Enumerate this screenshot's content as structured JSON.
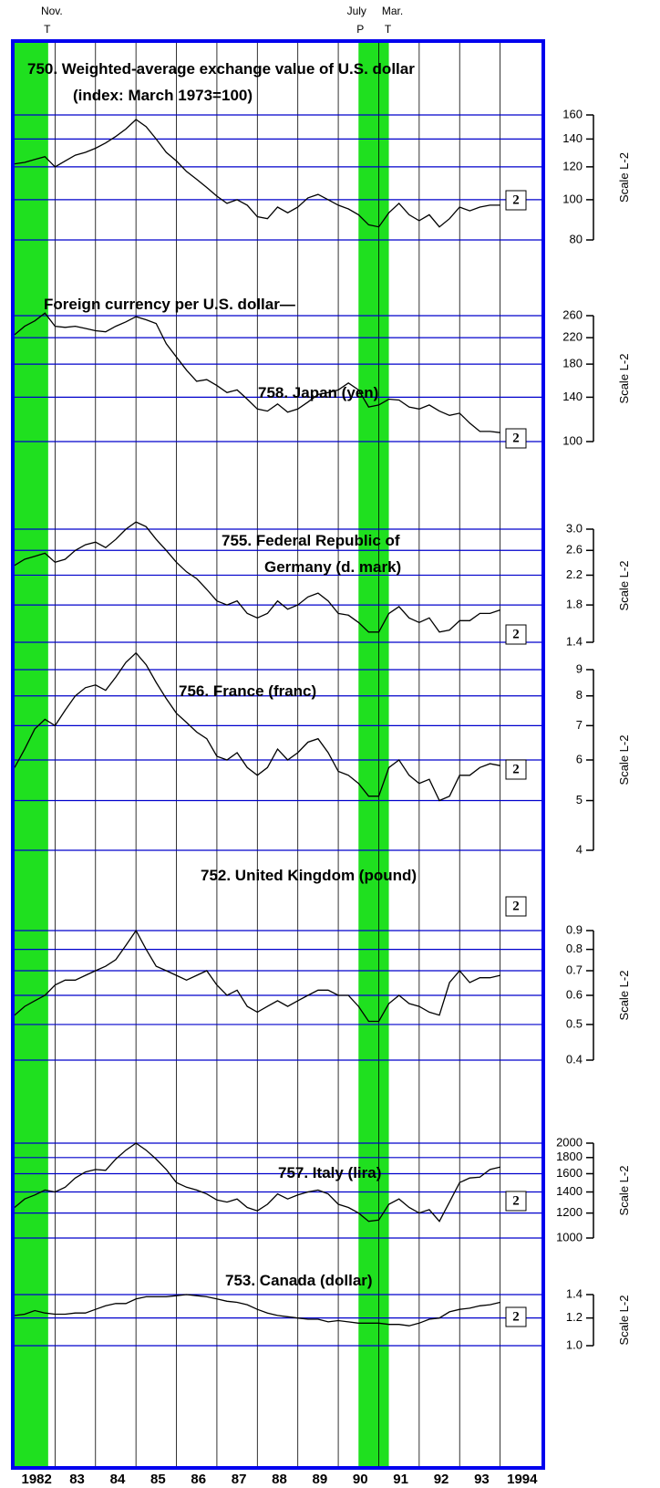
{
  "heading": "Foreign currency per U.S. dollar—",
  "band_color": "#1fe01f",
  "recessions": [
    {
      "end": 1982.83,
      "end_month": "Nov.",
      "end_mark": "T"
    },
    {
      "start": 1990.5,
      "start_month": "July",
      "start_mark": "P",
      "end": 1991.25,
      "end_month": "Mar.",
      "end_mark": "T"
    }
  ],
  "chart_data": [
    {
      "type": "line",
      "title_lines": [
        "750. Weighted-average exchange value of U.S. dollar",
        "(index: March 1973=100)"
      ],
      "note": "2",
      "axis_label": "Scale L-2",
      "log_scale": true,
      "color": "#000000",
      "ylim": [
        80,
        160
      ],
      "yticks": [
        80,
        100,
        120,
        140,
        160
      ],
      "x": [
        1982,
        1982.25,
        1982.5,
        1982.75,
        1983,
        1983.25,
        1983.5,
        1983.75,
        1984,
        1984.25,
        1984.5,
        1984.75,
        1985,
        1985.25,
        1985.5,
        1985.75,
        1986,
        1986.25,
        1986.5,
        1986.75,
        1987,
        1987.25,
        1987.5,
        1987.75,
        1988,
        1988.25,
        1988.5,
        1988.75,
        1989,
        1989.25,
        1989.5,
        1989.75,
        1990,
        1990.25,
        1990.5,
        1990.75,
        1991,
        1991.25,
        1991.5,
        1991.75,
        1992,
        1992.25,
        1992.5,
        1992.75,
        1993,
        1993.25,
        1993.5,
        1993.75,
        1994
      ],
      "values": [
        122,
        123,
        125,
        127,
        120,
        124,
        128,
        130,
        133,
        137,
        142,
        148,
        156,
        150,
        140,
        130,
        124,
        117,
        112,
        107,
        102,
        98,
        100,
        97,
        91,
        90,
        96,
        93,
        96,
        101,
        103,
        100,
        97,
        95,
        92,
        87,
        86,
        93,
        98,
        92,
        89,
        92,
        86,
        90,
        96,
        94,
        96,
        97,
        97
      ]
    },
    {
      "type": "line",
      "title_lines": [
        "758.  Japan (yen)"
      ],
      "note": "2",
      "axis_label": "Scale L-2",
      "log_scale": true,
      "color": "#000000",
      "ylim": [
        100,
        260
      ],
      "yticks": [
        100,
        140,
        180,
        220,
        260
      ],
      "x": [
        1982,
        1982.25,
        1982.5,
        1982.75,
        1983,
        1983.25,
        1983.5,
        1983.75,
        1984,
        1984.25,
        1984.5,
        1984.75,
        1985,
        1985.25,
        1985.5,
        1985.75,
        1986,
        1986.25,
        1986.5,
        1986.75,
        1987,
        1987.25,
        1987.5,
        1987.75,
        1988,
        1988.25,
        1988.5,
        1988.75,
        1989,
        1989.25,
        1989.5,
        1989.75,
        1990,
        1990.25,
        1990.5,
        1990.75,
        1991,
        1991.25,
        1991.5,
        1991.75,
        1992,
        1992.25,
        1992.5,
        1992.75,
        1993,
        1993.25,
        1993.5,
        1993.75,
        1994
      ],
      "values": [
        225,
        240,
        250,
        265,
        240,
        238,
        240,
        236,
        232,
        230,
        240,
        248,
        258,
        252,
        245,
        210,
        190,
        172,
        158,
        160,
        153,
        145,
        148,
        138,
        128,
        126,
        133,
        125,
        128,
        135,
        143,
        145,
        148,
        156,
        148,
        130,
        132,
        138,
        137,
        130,
        128,
        132,
        126,
        122,
        124,
        115,
        108,
        108,
        107
      ]
    },
    {
      "type": "line",
      "title_lines": [
        "755. Federal Republic of",
        "Germany (d. mark)"
      ],
      "note": "2",
      "axis_label": "Scale L-2",
      "log_scale": true,
      "color": "#000000",
      "ylim": [
        1.4,
        3
      ],
      "yticks": [
        1.4,
        1.8,
        2.2,
        2.6,
        {
          "value": 3,
          "label": "3.0"
        }
      ],
      "x": [
        1982,
        1982.25,
        1982.5,
        1982.75,
        1983,
        1983.25,
        1983.5,
        1983.75,
        1984,
        1984.25,
        1984.5,
        1984.75,
        1985,
        1985.25,
        1985.5,
        1985.75,
        1986,
        1986.25,
        1986.5,
        1986.75,
        1987,
        1987.25,
        1987.5,
        1987.75,
        1988,
        1988.25,
        1988.5,
        1988.75,
        1989,
        1989.25,
        1989.5,
        1989.75,
        1990,
        1990.25,
        1990.5,
        1990.75,
        1991,
        1991.25,
        1991.5,
        1991.75,
        1992,
        1992.25,
        1992.5,
        1992.75,
        1993,
        1993.25,
        1993.5,
        1993.75,
        1994
      ],
      "values": [
        2.35,
        2.45,
        2.5,
        2.55,
        2.4,
        2.45,
        2.6,
        2.7,
        2.75,
        2.65,
        2.8,
        3.0,
        3.15,
        3.05,
        2.8,
        2.6,
        2.4,
        2.25,
        2.15,
        2.0,
        1.85,
        1.8,
        1.85,
        1.7,
        1.65,
        1.7,
        1.85,
        1.75,
        1.8,
        1.9,
        1.95,
        1.85,
        1.7,
        1.68,
        1.6,
        1.5,
        1.5,
        1.7,
        1.78,
        1.65,
        1.6,
        1.65,
        1.5,
        1.52,
        1.62,
        1.62,
        1.7,
        1.7,
        1.74
      ]
    },
    {
      "type": "line",
      "title_lines": [
        "756. France (franc)"
      ],
      "note": "2",
      "axis_label": "Scale L-2",
      "log_scale": true,
      "color": "#000000",
      "ylim": [
        4,
        9
      ],
      "yticks": [
        4,
        5,
        6,
        7,
        8,
        9
      ],
      "x": [
        1982,
        1982.25,
        1982.5,
        1982.75,
        1983,
        1983.25,
        1983.5,
        1983.75,
        1984,
        1984.25,
        1984.5,
        1984.75,
        1985,
        1985.25,
        1985.5,
        1985.75,
        1986,
        1986.25,
        1986.5,
        1986.75,
        1987,
        1987.25,
        1987.5,
        1987.75,
        1988,
        1988.25,
        1988.5,
        1988.75,
        1989,
        1989.25,
        1989.5,
        1989.75,
        1990,
        1990.25,
        1990.5,
        1990.75,
        1991,
        1991.25,
        1991.5,
        1991.75,
        1992,
        1992.25,
        1992.5,
        1992.75,
        1993,
        1993.25,
        1993.5,
        1993.75,
        1994
      ],
      "values": [
        5.8,
        6.3,
        6.9,
        7.2,
        7.0,
        7.5,
        8.0,
        8.3,
        8.4,
        8.2,
        8.7,
        9.3,
        9.7,
        9.2,
        8.5,
        7.9,
        7.4,
        7.1,
        6.8,
        6.6,
        6.1,
        6.0,
        6.2,
        5.8,
        5.6,
        5.8,
        6.3,
        6.0,
        6.2,
        6.5,
        6.6,
        6.2,
        5.7,
        5.6,
        5.4,
        5.1,
        5.1,
        5.8,
        6.0,
        5.6,
        5.4,
        5.5,
        5.0,
        5.1,
        5.6,
        5.6,
        5.8,
        5.9,
        5.85
      ]
    },
    {
      "type": "line",
      "title_lines": [
        "752. United Kingdom (pound)"
      ],
      "note": "2",
      "axis_label": "Scale L-2",
      "log_scale": true,
      "color": "#000000",
      "ylim": [
        0.4,
        0.9
      ],
      "yticks": [
        0.4,
        0.5,
        0.6,
        0.7,
        0.8,
        0.9
      ],
      "x": [
        1982,
        1982.25,
        1982.5,
        1982.75,
        1983,
        1983.25,
        1983.5,
        1983.75,
        1984,
        1984.25,
        1984.5,
        1984.75,
        1985,
        1985.25,
        1985.5,
        1985.75,
        1986,
        1986.25,
        1986.5,
        1986.75,
        1987,
        1987.25,
        1987.5,
        1987.75,
        1988,
        1988.25,
        1988.5,
        1988.75,
        1989,
        1989.25,
        1989.5,
        1989.75,
        1990,
        1990.25,
        1990.5,
        1990.75,
        1991,
        1991.25,
        1991.5,
        1991.75,
        1992,
        1992.25,
        1992.5,
        1992.75,
        1993,
        1993.25,
        1993.5,
        1993.75,
        1994
      ],
      "values": [
        0.53,
        0.56,
        0.58,
        0.6,
        0.64,
        0.66,
        0.66,
        0.68,
        0.7,
        0.72,
        0.75,
        0.82,
        0.9,
        0.8,
        0.72,
        0.7,
        0.68,
        0.66,
        0.68,
        0.7,
        0.64,
        0.6,
        0.62,
        0.56,
        0.54,
        0.56,
        0.58,
        0.56,
        0.58,
        0.6,
        0.62,
        0.62,
        0.6,
        0.6,
        0.56,
        0.51,
        0.51,
        0.57,
        0.6,
        0.57,
        0.56,
        0.54,
        0.53,
        0.65,
        0.7,
        0.65,
        0.67,
        0.67,
        0.68
      ]
    },
    {
      "type": "line",
      "title_lines": [
        "757. Italy (lira)"
      ],
      "note": "2",
      "axis_label": "Scale L-2",
      "log_scale": true,
      "color": "#000000",
      "ylim": [
        1000,
        2000
      ],
      "yticks": [
        1000,
        1200,
        1400,
        1600,
        1800,
        2000
      ],
      "x": [
        1982,
        1982.25,
        1982.5,
        1982.75,
        1983,
        1983.25,
        1983.5,
        1983.75,
        1984,
        1984.25,
        1984.5,
        1984.75,
        1985,
        1985.25,
        1985.5,
        1985.75,
        1986,
        1986.25,
        1986.5,
        1986.75,
        1987,
        1987.25,
        1987.5,
        1987.75,
        1988,
        1988.25,
        1988.5,
        1988.75,
        1989,
        1989.25,
        1989.5,
        1989.75,
        1990,
        1990.25,
        1990.5,
        1990.75,
        1991,
        1991.25,
        1991.5,
        1991.75,
        1992,
        1992.25,
        1992.5,
        1992.75,
        1993,
        1993.25,
        1993.5,
        1993.75,
        1994
      ],
      "values": [
        1250,
        1330,
        1370,
        1420,
        1400,
        1450,
        1550,
        1620,
        1650,
        1640,
        1780,
        1900,
        2000,
        1900,
        1780,
        1650,
        1500,
        1450,
        1420,
        1380,
        1320,
        1300,
        1330,
        1250,
        1220,
        1280,
        1380,
        1330,
        1370,
        1400,
        1420,
        1380,
        1280,
        1250,
        1200,
        1130,
        1140,
        1280,
        1330,
        1250,
        1200,
        1230,
        1130,
        1300,
        1500,
        1550,
        1560,
        1650,
        1680
      ]
    },
    {
      "type": "line",
      "title_lines": [
        "753. Canada (dollar)"
      ],
      "note": "2",
      "axis_label": "Scale L-2",
      "log_scale": true,
      "color": "#000000",
      "ylim": [
        1,
        1.4
      ],
      "yticks": [
        {
          "value": 1,
          "label": "1.0"
        },
        1.2,
        1.4
      ],
      "xlim": [
        1982,
        1995
      ],
      "xticks": [
        {
          "value": 1982,
          "label": "1982"
        },
        {
          "value": 1983,
          "label": "83"
        },
        {
          "value": 1984,
          "label": "84"
        },
        {
          "value": 1985,
          "label": "85"
        },
        {
          "value": 1986,
          "label": "86"
        },
        {
          "value": 1987,
          "label": "87"
        },
        {
          "value": 1988,
          "label": "88"
        },
        {
          "value": 1989,
          "label": "89"
        },
        {
          "value": 1990,
          "label": "90"
        },
        {
          "value": 1991,
          "label": "91"
        },
        {
          "value": 1992,
          "label": "92"
        },
        {
          "value": 1993,
          "label": "93"
        },
        {
          "value": 1994,
          "label": "1994"
        }
      ],
      "x": [
        1982,
        1982.25,
        1982.5,
        1982.75,
        1983,
        1983.25,
        1983.5,
        1983.75,
        1984,
        1984.25,
        1984.5,
        1984.75,
        1985,
        1985.25,
        1985.5,
        1985.75,
        1986,
        1986.25,
        1986.5,
        1986.75,
        1987,
        1987.25,
        1987.5,
        1987.75,
        1988,
        1988.25,
        1988.5,
        1988.75,
        1989,
        1989.25,
        1989.5,
        1989.75,
        1990,
        1990.25,
        1990.5,
        1990.75,
        1991,
        1991.25,
        1991.5,
        1991.75,
        1992,
        1992.25,
        1992.5,
        1992.75,
        1993,
        1993.25,
        1993.5,
        1993.75,
        1994
      ],
      "values": [
        1.22,
        1.23,
        1.26,
        1.24,
        1.23,
        1.23,
        1.24,
        1.24,
        1.27,
        1.3,
        1.32,
        1.32,
        1.36,
        1.38,
        1.38,
        1.38,
        1.39,
        1.4,
        1.39,
        1.38,
        1.36,
        1.34,
        1.33,
        1.31,
        1.27,
        1.24,
        1.22,
        1.21,
        1.2,
        1.19,
        1.19,
        1.17,
        1.18,
        1.17,
        1.16,
        1.16,
        1.16,
        1.15,
        1.15,
        1.14,
        1.16,
        1.19,
        1.2,
        1.25,
        1.27,
        1.28,
        1.3,
        1.31,
        1.33
      ]
    }
  ]
}
